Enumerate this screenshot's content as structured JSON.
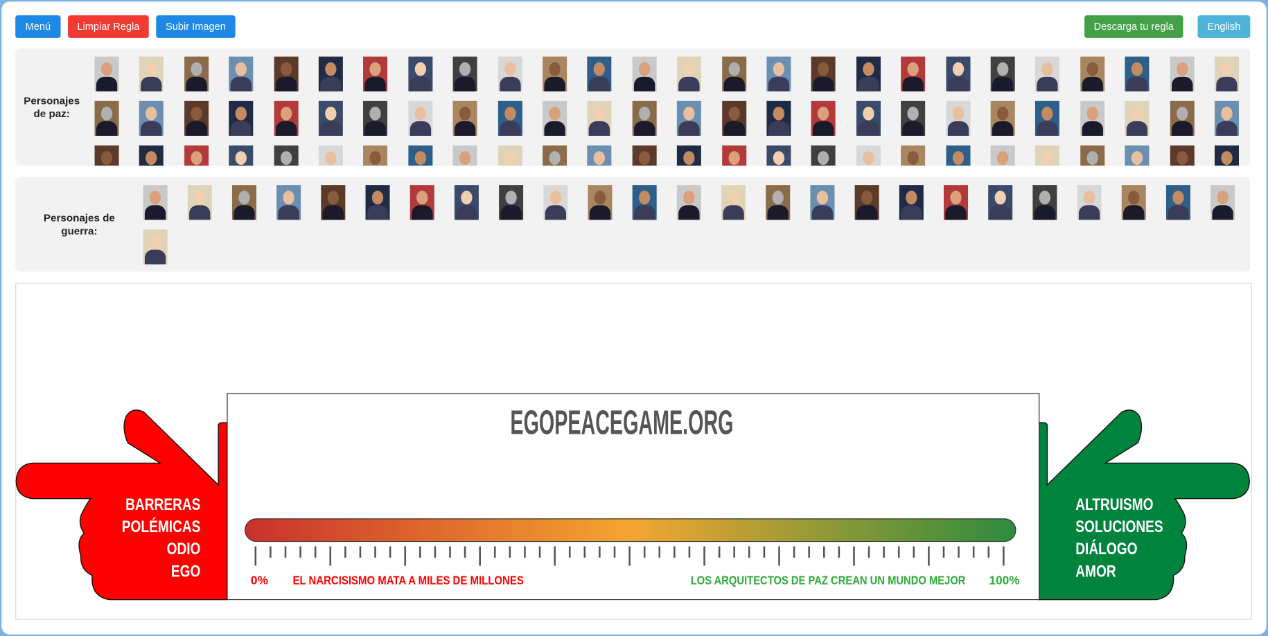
{
  "toolbar": {
    "menu_label": "Menú",
    "clear_label": "Limpiar Regla",
    "upload_label": "Subir Imagen",
    "download_label": "Descarga tu regla",
    "language_label": "English"
  },
  "peace_panel": {
    "label_line1": "Personajes",
    "label_line2": "de paz:",
    "count": 78
  },
  "war_panel": {
    "label_line1": "Personajes de",
    "label_line2": "guerra:",
    "count": 26
  },
  "ruler": {
    "title": "EGOPEACEGAME.ORG",
    "left_percent": "0%",
    "right_percent": "100%",
    "left_caption": "EL NARCISISMO MATA A MILES DE MILLONES",
    "right_caption": "LOS ARQUITECTOS DE PAZ CREAN UN MUNDO MEJOR",
    "left_hand_words": [
      "BARRERAS",
      "POLÉMICAS",
      "ODIO",
      "EGO"
    ],
    "right_hand_words": [
      "ALTRUISMO",
      "SOLUCIONES",
      "DIÁLOGO",
      "AMOR"
    ]
  },
  "colors": {
    "menu": "#1e88e5",
    "clear": "#f03a32",
    "upload": "#1e88e5",
    "download": "#43a047",
    "language": "#4db3d8",
    "left_hand": "#ff0000",
    "right_hand": "#00843d",
    "gradient": [
      "#c8302a",
      "#f5a630",
      "#2e8b3e"
    ],
    "title": "#555555",
    "left_caption": "#ff0000",
    "right_caption": "#2eaa3a"
  }
}
